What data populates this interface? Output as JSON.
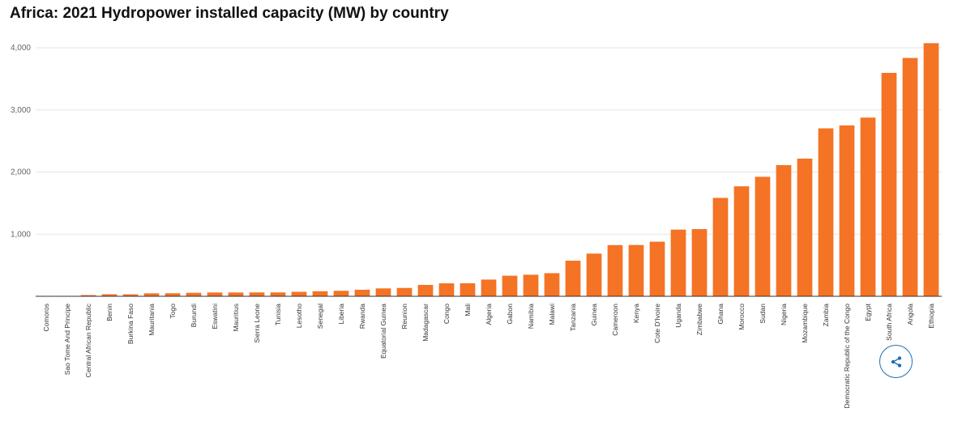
{
  "title": "Africa: 2021 Hydropower installed capacity (MW) by country",
  "colors": {
    "bar": "#f47324",
    "grid": "#e6e6e6",
    "axis": "#333333",
    "tick_text": "#666666",
    "share": "#1f6fb2"
  },
  "share_button": {
    "icon": "share-icon"
  },
  "chart_data": {
    "type": "bar",
    "title": "Africa: 2021 Hydropower installed capacity (MW) by country",
    "xlabel": "",
    "ylabel": "",
    "ylim": [
      0,
      4000
    ],
    "yticks": [
      1000,
      2000,
      3000,
      4000
    ],
    "ytick_labels": [
      "1,000",
      "2,000",
      "3,000",
      "4,000"
    ],
    "grid": true,
    "categories": [
      "Comoros",
      "Sao Tome And Principe",
      "Central African Republic",
      "Benin",
      "Burkina Faso",
      "Mauritania",
      "Togo",
      "Burundi",
      "Eswatini",
      "Mauritius",
      "Sierra Leone",
      "Tunisia",
      "Lesotho",
      "Senegal",
      "Liberia",
      "Rwanda",
      "Equatorial Guinea",
      "Reunion",
      "Madagascar",
      "Congo",
      "Mali",
      "Algeria",
      "Gabon",
      "Namibia",
      "Malawi",
      "Tanzania",
      "Guinea",
      "Cameroon",
      "Kenya",
      "Cote D'Ivoire",
      "Uganda",
      "Zimbabwe",
      "Ghana",
      "Morocco",
      "Sudan",
      "Nigeria",
      "Mozambique",
      "Zambia",
      "Democratic Republic of the Congo",
      "Egypt",
      "South Africa",
      "Angola",
      "Ethiopia"
    ],
    "values": [
      1,
      2,
      19,
      33,
      32,
      48,
      49,
      56,
      61,
      61,
      62,
      62,
      72,
      81,
      88,
      105,
      127,
      134,
      183,
      209,
      210,
      269,
      331,
      347,
      372,
      573,
      687,
      824,
      826,
      879,
      1073,
      1081,
      1584,
      1770,
      1923,
      2111,
      2216,
      2703,
      2750,
      2876,
      3596,
      3836,
      4074
    ]
  }
}
